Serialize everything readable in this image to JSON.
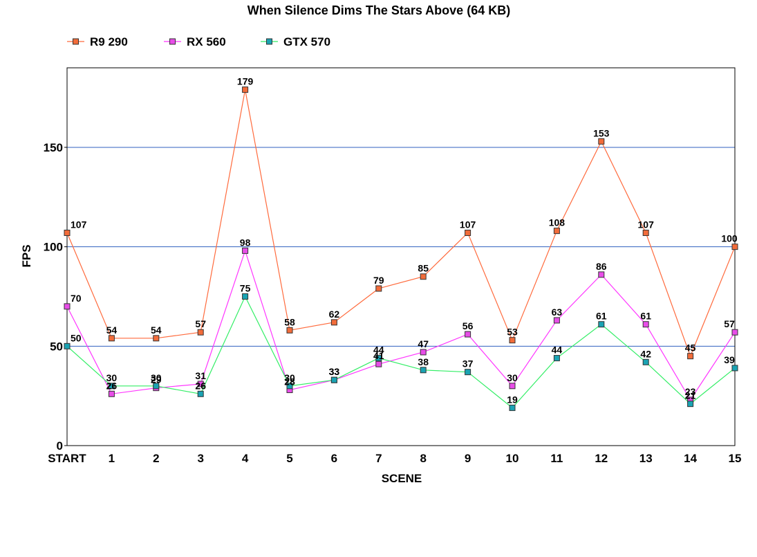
{
  "chart_data": {
    "type": "line",
    "title": "When Silence Dims The Stars Above (64 KB)",
    "xlabel": "SCENE",
    "ylabel": "FPS",
    "categories": [
      "START",
      "1",
      "2",
      "3",
      "4",
      "5",
      "6",
      "7",
      "8",
      "9",
      "10",
      "11",
      "12",
      "13",
      "14",
      "15"
    ],
    "ylim": [
      0,
      190
    ],
    "yticks": [
      0,
      50,
      100,
      150
    ],
    "grid": true,
    "legend_position": "top-left",
    "series": [
      {
        "name": "R9 290",
        "color": "#ff6a3c",
        "marker_color": "#f26c3a",
        "values": [
          107,
          54,
          54,
          57,
          179,
          58,
          62,
          79,
          85,
          107,
          53,
          108,
          153,
          107,
          45,
          100
        ]
      },
      {
        "name": "RX 560",
        "color": "#ff33ff",
        "marker_color": "#e84de8",
        "values": [
          70,
          26,
          29,
          31,
          98,
          28,
          33,
          41,
          47,
          56,
          30,
          63,
          86,
          61,
          23,
          57
        ]
      },
      {
        "name": "GTX 570",
        "color": "#33ee66",
        "marker_color": "#1aa3b3",
        "values": [
          50,
          30,
          30,
          26,
          75,
          30,
          33,
          44,
          38,
          37,
          19,
          44,
          61,
          42,
          21,
          39
        ]
      }
    ]
  }
}
